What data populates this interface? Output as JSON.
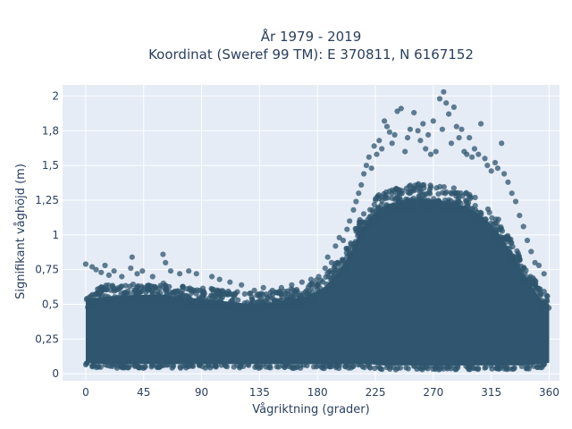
{
  "chart_data": {
    "type": "scatter",
    "title": "År 1979 - 2019",
    "subtitle": "Koordinat (Sweref 99 TM): E 370811, N 6167152",
    "xlabel": "Vågriktning (grader)",
    "ylabel": "Signifikant våghöjd (m)",
    "xlim": [
      -18,
      368
    ],
    "ylim": [
      -0.05,
      2.08
    ],
    "x_ticks": [
      0,
      45,
      90,
      135,
      180,
      225,
      270,
      315,
      360
    ],
    "y_ticks": [
      0,
      0.25,
      0.5,
      0.75,
      1,
      1.25,
      1.5,
      1.75,
      2
    ],
    "x_tick_labels": [
      "0",
      "45",
      "90",
      "135",
      "180",
      "225",
      "270",
      "315",
      "360"
    ],
    "y_tick_labels": [
      "0",
      "0,25",
      "0,5",
      "0,75",
      "1",
      "1,25",
      "1,5",
      "1,8",
      "2"
    ],
    "grid": true,
    "marker_color": "#2f566e",
    "plot_background": "#e5ecf6",
    "envelope": {
      "direction_deg": [
        0,
        10,
        20,
        30,
        45,
        60,
        75,
        90,
        110,
        130,
        150,
        170,
        185,
        195,
        205,
        212,
        220,
        230,
        245,
        260,
        275,
        290,
        300,
        310,
        320,
        330,
        340,
        350,
        355,
        360
      ],
      "dense_upper_m": [
        0.52,
        0.55,
        0.56,
        0.56,
        0.57,
        0.57,
        0.55,
        0.54,
        0.52,
        0.5,
        0.52,
        0.55,
        0.62,
        0.72,
        0.86,
        1.0,
        1.12,
        1.2,
        1.25,
        1.26,
        1.25,
        1.22,
        1.18,
        1.12,
        1.02,
        0.88,
        0.72,
        0.58,
        0.52,
        0.5
      ],
      "dense_lower_m": [
        0.08,
        0.07,
        0.07,
        0.07,
        0.07,
        0.07,
        0.07,
        0.07,
        0.07,
        0.07,
        0.07,
        0.07,
        0.07,
        0.07,
        0.07,
        0.07,
        0.07,
        0.06,
        0.06,
        0.06,
        0.06,
        0.06,
        0.06,
        0.06,
        0.06,
        0.06,
        0.06,
        0.07,
        0.07,
        0.08
      ]
    },
    "points": [
      [
        0,
        0.79
      ],
      [
        5,
        0.77
      ],
      [
        8,
        0.75
      ],
      [
        12,
        0.73
      ],
      [
        15,
        0.78
      ],
      [
        18,
        0.71
      ],
      [
        22,
        0.74
      ],
      [
        28,
        0.7
      ],
      [
        35,
        0.76
      ],
      [
        36,
        0.84
      ],
      [
        40,
        0.72
      ],
      [
        44,
        0.74
      ],
      [
        52,
        0.7
      ],
      [
        60,
        0.86
      ],
      [
        62,
        0.8
      ],
      [
        66,
        0.74
      ],
      [
        73,
        0.72
      ],
      [
        80,
        0.74
      ],
      [
        86,
        0.72
      ],
      [
        98,
        0.7
      ],
      [
        104,
        0.68
      ],
      [
        112,
        0.66
      ],
      [
        121,
        0.64
      ],
      [
        131,
        0.6
      ],
      [
        138,
        0.62
      ],
      [
        145,
        0.6
      ],
      [
        152,
        0.62
      ],
      [
        160,
        0.64
      ],
      [
        168,
        0.66
      ],
      [
        175,
        0.68
      ],
      [
        181,
        0.7
      ],
      [
        186,
        0.76
      ],
      [
        188,
        0.84
      ],
      [
        191,
        0.8
      ],
      [
        194,
        0.92
      ],
      [
        197,
        0.98
      ],
      [
        200,
        0.96
      ],
      [
        203,
        1.04
      ],
      [
        205,
        1.1
      ],
      [
        208,
        1.18
      ],
      [
        210,
        1.24
      ],
      [
        212,
        1.3
      ],
      [
        214,
        1.36
      ],
      [
        216,
        1.44
      ],
      [
        218,
        1.5
      ],
      [
        220,
        1.56
      ],
      [
        222,
        1.48
      ],
      [
        224,
        1.64
      ],
      [
        226,
        1.58
      ],
      [
        228,
        1.68
      ],
      [
        230,
        1.62
      ],
      [
        232,
        1.82
      ],
      [
        234,
        1.78
      ],
      [
        236,
        1.74
      ],
      [
        238,
        1.66
      ],
      [
        240,
        1.72
      ],
      [
        242,
        1.89
      ],
      [
        245,
        1.91
      ],
      [
        248,
        1.6
      ],
      [
        250,
        1.7
      ],
      [
        252,
        1.76
      ],
      [
        255,
        1.88
      ],
      [
        258,
        1.75
      ],
      [
        260,
        1.68
      ],
      [
        262,
        1.8
      ],
      [
        264,
        1.62
      ],
      [
        266,
        1.72
      ],
      [
        268,
        1.58
      ],
      [
        270,
        1.82
      ],
      [
        272,
        1.6
      ],
      [
        275,
        1.98
      ],
      [
        277,
        1.76
      ],
      [
        278,
        2.03
      ],
      [
        280,
        1.95
      ],
      [
        282,
        1.87
      ],
      [
        284,
        1.66
      ],
      [
        286,
        1.92
      ],
      [
        288,
        1.78
      ],
      [
        290,
        1.7
      ],
      [
        292,
        1.76
      ],
      [
        294,
        1.6
      ],
      [
        296,
        1.58
      ],
      [
        298,
        1.7
      ],
      [
        300,
        1.56
      ],
      [
        302,
        1.62
      ],
      [
        305,
        1.58
      ],
      [
        307,
        1.8
      ],
      [
        310,
        1.55
      ],
      [
        312,
        1.5
      ],
      [
        315,
        1.46
      ],
      [
        318,
        1.52
      ],
      [
        320,
        1.48
      ],
      [
        323,
        1.66
      ],
      [
        325,
        1.44
      ],
      [
        328,
        1.38
      ],
      [
        331,
        1.3
      ],
      [
        334,
        1.24
      ],
      [
        337,
        1.14
      ],
      [
        340,
        1.06
      ],
      [
        343,
        0.96
      ],
      [
        346,
        0.88
      ],
      [
        349,
        0.8
      ],
      [
        352,
        0.78
      ],
      [
        356,
        0.72
      ]
    ]
  }
}
